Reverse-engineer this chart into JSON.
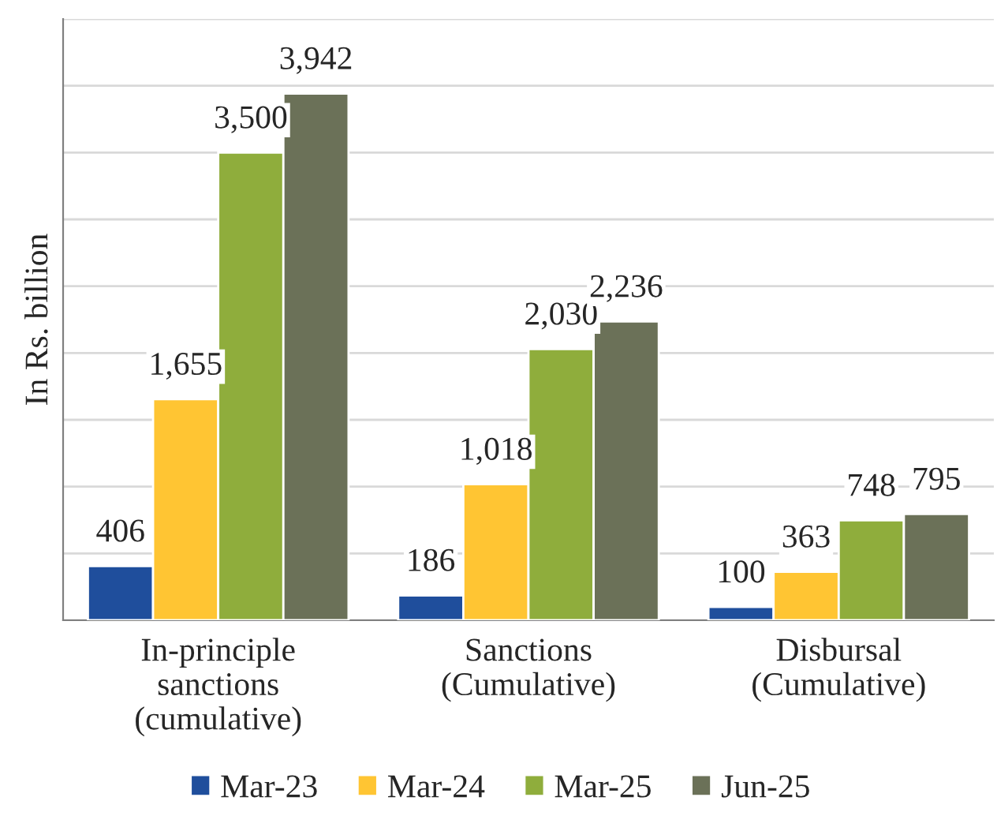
{
  "chart_data": {
    "type": "bar",
    "ylabel": "In Rs. billion",
    "categories": [
      "In-principle\nsanctions\n(cumulative)",
      "Sanctions\n(Cumulative)",
      "Disbursal\n(Cumulative)"
    ],
    "series": [
      {
        "name": "Mar-23",
        "color": "#1f4e9c",
        "values": [
          406,
          186,
          100
        ],
        "value_labels": [
          "406",
          "186",
          "100"
        ]
      },
      {
        "name": "Mar-24",
        "color": "#ffc533",
        "values": [
          1655,
          1018,
          363
        ],
        "value_labels": [
          "1,655",
          "1,018",
          "363"
        ]
      },
      {
        "name": "Mar-25",
        "color": "#8fad3c",
        "values": [
          3500,
          2030,
          748
        ],
        "value_labels": [
          "3,500",
          "2,030",
          "748"
        ]
      },
      {
        "name": "Jun-25",
        "color": "#6b7158",
        "values": [
          3942,
          2236,
          795
        ],
        "value_labels": [
          "3,942",
          "2,236",
          "795"
        ]
      }
    ],
    "ylim": [
      0,
      4500
    ],
    "yticks": [
      {
        "value": 0,
        "label": null
      },
      {
        "value": 500,
        "label": null
      },
      {
        "value": 1000,
        "label": null
      },
      {
        "value": 1500,
        "label": null
      },
      {
        "value": 2000,
        "label": null
      },
      {
        "value": 2500,
        "label": null
      },
      {
        "value": 3000,
        "label": null
      },
      {
        "value": 3500,
        "label": null
      },
      {
        "value": 4000,
        "label": null
      },
      {
        "value": 4500,
        "label": null
      }
    ],
    "grid": "y",
    "legend": "bottom",
    "tick_labels": "x"
  }
}
